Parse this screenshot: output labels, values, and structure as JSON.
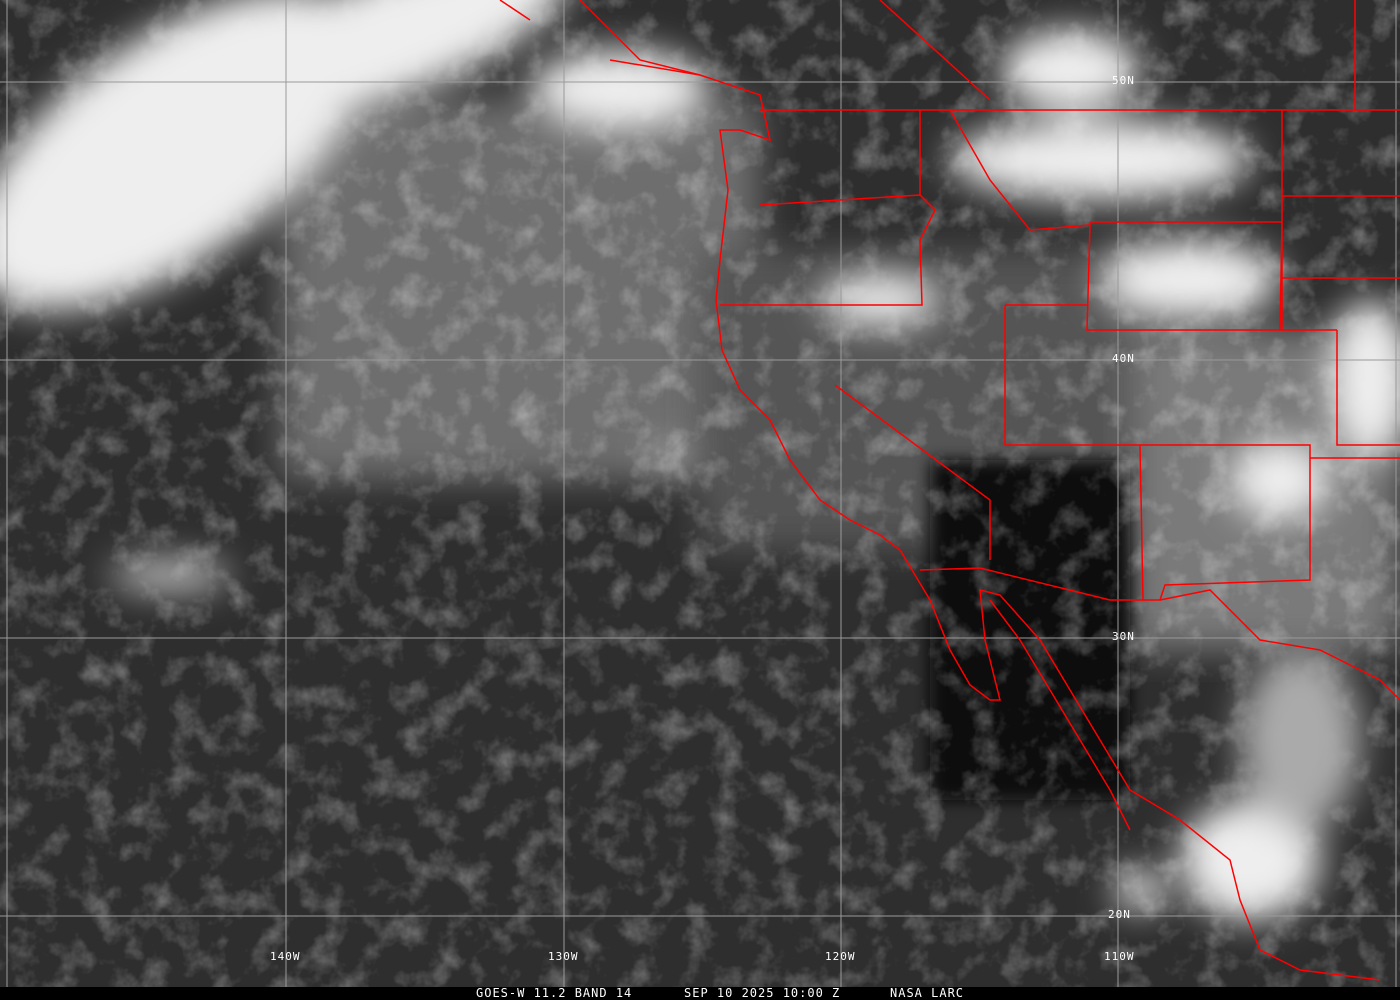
{
  "image": {
    "satellite_label": "GOES-W 11.2 BAND 14",
    "datetime_label": "SEP 10 2025 10:00 Z",
    "source_label": "NASA LARC"
  },
  "grid": {
    "latitudes": [
      "50N",
      "40N",
      "30N",
      "20N"
    ],
    "longitudes": [
      "140W",
      "130W",
      "120W",
      "110W"
    ],
    "grid_color": "#9a9a9a"
  },
  "colors": {
    "boundaries": "#ff0000",
    "caption_bg": "#000000",
    "caption_text": "#ffffff"
  }
}
